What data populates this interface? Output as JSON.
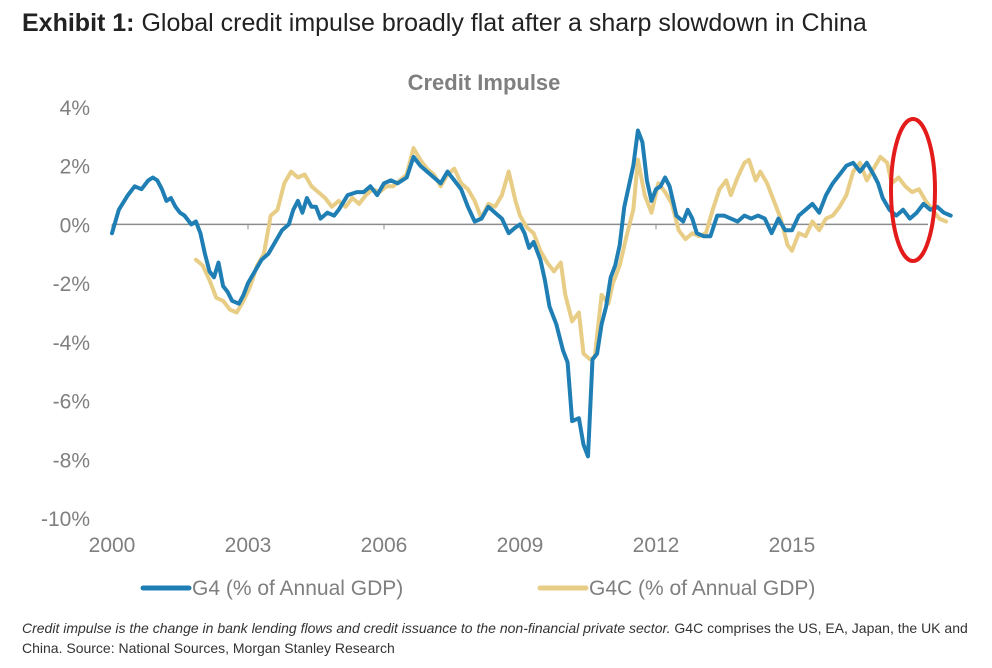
{
  "exhibit": {
    "label": "Exhibit 1:",
    "title": "Global credit impulse broadly flat after a sharp slowdown in China"
  },
  "footnote": {
    "italic": "Credit impulse is the change in bank lending flows and credit issuance to the non-financial private sector.",
    "text": "G4C comprises the US, EA, Japan, the UK and China. Source: National Sources, Morgan Stanley Research"
  },
  "colors": {
    "g4": "#1f7fb4",
    "g4c": "#e8cd86",
    "axis_text": "#7f7f7f",
    "zero_line": "#8c8c8c",
    "highlight_ring": "#e31b1b"
  },
  "chart_data": {
    "type": "line",
    "title": "Credit Impulse",
    "xlabel": "",
    "ylabel": "",
    "x_ticks": [
      "2000",
      "2003",
      "2006",
      "2009",
      "2012",
      "2015"
    ],
    "y_ticks": [
      "4%",
      "2%",
      "0%",
      "-2%",
      "-4%",
      "-6%",
      "-8%",
      "-10%"
    ],
    "xlim": [
      2000,
      2018
    ],
    "ylim": [
      -10,
      4
    ],
    "grid": false,
    "legend_position": "bottom",
    "series": [
      {
        "name": "G4 (% of Annual GDP)",
        "color": "#1f7fb4",
        "points": [
          [
            2000.0,
            -0.3
          ],
          [
            2000.15,
            0.5
          ],
          [
            2000.35,
            1.0
          ],
          [
            2000.5,
            1.3
          ],
          [
            2000.65,
            1.2
          ],
          [
            2000.8,
            1.5
          ],
          [
            2000.9,
            1.6
          ],
          [
            2001.0,
            1.5
          ],
          [
            2001.1,
            1.2
          ],
          [
            2001.2,
            0.8
          ],
          [
            2001.3,
            0.9
          ],
          [
            2001.4,
            0.6
          ],
          [
            2001.5,
            0.4
          ],
          [
            2001.6,
            0.3
          ],
          [
            2001.75,
            0.0
          ],
          [
            2001.85,
            0.1
          ],
          [
            2001.95,
            -0.3
          ],
          [
            2002.05,
            -1.0
          ],
          [
            2002.15,
            -1.6
          ],
          [
            2002.25,
            -1.8
          ],
          [
            2002.35,
            -1.3
          ],
          [
            2002.45,
            -2.1
          ],
          [
            2002.55,
            -2.3
          ],
          [
            2002.65,
            -2.6
          ],
          [
            2002.8,
            -2.7
          ],
          [
            2002.9,
            -2.4
          ],
          [
            2003.0,
            -2.0
          ],
          [
            2003.15,
            -1.6
          ],
          [
            2003.3,
            -1.2
          ],
          [
            2003.45,
            -1.0
          ],
          [
            2003.6,
            -0.6
          ],
          [
            2003.75,
            -0.2
          ],
          [
            2003.9,
            0.0
          ],
          [
            2004.0,
            0.5
          ],
          [
            2004.1,
            0.8
          ],
          [
            2004.2,
            0.4
          ],
          [
            2004.3,
            0.9
          ],
          [
            2004.4,
            0.6
          ],
          [
            2004.5,
            0.6
          ],
          [
            2004.6,
            0.2
          ],
          [
            2004.75,
            0.4
          ],
          [
            2004.9,
            0.3
          ],
          [
            2005.0,
            0.5
          ],
          [
            2005.2,
            1.0
          ],
          [
            2005.4,
            1.1
          ],
          [
            2005.55,
            1.1
          ],
          [
            2005.7,
            1.3
          ],
          [
            2005.85,
            1.0
          ],
          [
            2006.0,
            1.4
          ],
          [
            2006.15,
            1.5
          ],
          [
            2006.3,
            1.4
          ],
          [
            2006.5,
            1.6
          ],
          [
            2006.65,
            2.3
          ],
          [
            2006.8,
            2.0
          ],
          [
            2006.95,
            1.8
          ],
          [
            2007.1,
            1.6
          ],
          [
            2007.25,
            1.4
          ],
          [
            2007.4,
            1.8
          ],
          [
            2007.55,
            1.5
          ],
          [
            2007.7,
            1.2
          ],
          [
            2007.85,
            0.6
          ],
          [
            2008.0,
            0.1
          ],
          [
            2008.15,
            0.2
          ],
          [
            2008.3,
            0.6
          ],
          [
            2008.45,
            0.4
          ],
          [
            2008.6,
            0.2
          ],
          [
            2008.75,
            -0.3
          ],
          [
            2008.9,
            -0.1
          ],
          [
            2009.0,
            0.0
          ],
          [
            2009.1,
            -0.3
          ],
          [
            2009.2,
            -0.8
          ],
          [
            2009.3,
            -0.6
          ],
          [
            2009.45,
            -1.2
          ],
          [
            2009.55,
            -1.9
          ],
          [
            2009.65,
            -2.8
          ],
          [
            2009.8,
            -3.4
          ],
          [
            2009.95,
            -4.3
          ],
          [
            2010.05,
            -4.7
          ],
          [
            2010.15,
            -6.7
          ],
          [
            2010.3,
            -6.6
          ],
          [
            2010.4,
            -7.5
          ],
          [
            2010.5,
            -7.9
          ],
          [
            2010.6,
            -4.6
          ],
          [
            2010.7,
            -4.4
          ],
          [
            2010.8,
            -3.4
          ],
          [
            2010.9,
            -2.8
          ],
          [
            2011.0,
            -1.8
          ],
          [
            2011.1,
            -1.4
          ],
          [
            2011.2,
            -0.7
          ],
          [
            2011.3,
            0.6
          ],
          [
            2011.4,
            1.3
          ],
          [
            2011.5,
            2.0
          ],
          [
            2011.6,
            3.2
          ],
          [
            2011.7,
            2.8
          ],
          [
            2011.8,
            1.5
          ],
          [
            2011.9,
            0.8
          ],
          [
            2012.0,
            1.2
          ],
          [
            2012.1,
            1.3
          ],
          [
            2012.2,
            1.6
          ],
          [
            2012.3,
            1.3
          ],
          [
            2012.45,
            0.3
          ],
          [
            2012.6,
            0.1
          ],
          [
            2012.7,
            0.5
          ],
          [
            2012.8,
            0.2
          ],
          [
            2012.9,
            -0.3
          ],
          [
            2013.05,
            -0.4
          ],
          [
            2013.2,
            -0.4
          ],
          [
            2013.35,
            0.3
          ],
          [
            2013.5,
            0.3
          ],
          [
            2013.65,
            0.2
          ],
          [
            2013.8,
            0.1
          ],
          [
            2013.95,
            0.3
          ],
          [
            2014.1,
            0.2
          ],
          [
            2014.25,
            0.3
          ],
          [
            2014.4,
            0.2
          ],
          [
            2014.55,
            -0.3
          ],
          [
            2014.7,
            0.2
          ],
          [
            2014.85,
            -0.2
          ],
          [
            2015.0,
            -0.2
          ],
          [
            2015.15,
            0.3
          ],
          [
            2015.3,
            0.5
          ],
          [
            2015.45,
            0.7
          ],
          [
            2015.6,
            0.4
          ],
          [
            2015.75,
            1.0
          ],
          [
            2015.9,
            1.4
          ],
          [
            2016.0,
            1.6
          ],
          [
            2016.1,
            1.8
          ],
          [
            2016.2,
            2.0
          ],
          [
            2016.35,
            2.1
          ],
          [
            2016.5,
            1.8
          ],
          [
            2016.65,
            2.1
          ],
          [
            2016.8,
            1.7
          ],
          [
            2016.9,
            1.4
          ],
          [
            2017.0,
            0.9
          ],
          [
            2017.15,
            0.5
          ],
          [
            2017.3,
            0.3
          ],
          [
            2017.45,
            0.5
          ],
          [
            2017.6,
            0.2
          ],
          [
            2017.75,
            0.4
          ],
          [
            2017.9,
            0.7
          ],
          [
            2018.05,
            0.5
          ],
          [
            2018.2,
            0.6
          ],
          [
            2018.35,
            0.4
          ],
          [
            2018.5,
            0.3
          ]
        ]
      },
      {
        "name": "G4C (% of Annual GDP)",
        "color": "#e8cd86",
        "points": [
          [
            2001.85,
            -1.2
          ],
          [
            2002.0,
            -1.4
          ],
          [
            2002.15,
            -1.9
          ],
          [
            2002.3,
            -2.5
          ],
          [
            2002.45,
            -2.6
          ],
          [
            2002.6,
            -2.9
          ],
          [
            2002.75,
            -3.0
          ],
          [
            2002.9,
            -2.6
          ],
          [
            2003.05,
            -2.1
          ],
          [
            2003.2,
            -1.4
          ],
          [
            2003.35,
            -1.0
          ],
          [
            2003.5,
            0.3
          ],
          [
            2003.65,
            0.5
          ],
          [
            2003.8,
            1.4
          ],
          [
            2003.95,
            1.8
          ],
          [
            2004.1,
            1.6
          ],
          [
            2004.25,
            1.7
          ],
          [
            2004.4,
            1.3
          ],
          [
            2004.55,
            1.1
          ],
          [
            2004.7,
            0.9
          ],
          [
            2004.85,
            0.6
          ],
          [
            2005.0,
            0.8
          ],
          [
            2005.15,
            0.6
          ],
          [
            2005.3,
            0.9
          ],
          [
            2005.45,
            0.7
          ],
          [
            2005.6,
            1.0
          ],
          [
            2005.75,
            1.2
          ],
          [
            2005.9,
            1.1
          ],
          [
            2006.05,
            1.3
          ],
          [
            2006.2,
            1.3
          ],
          [
            2006.35,
            1.5
          ],
          [
            2006.5,
            1.7
          ],
          [
            2006.65,
            2.6
          ],
          [
            2006.8,
            2.2
          ],
          [
            2006.95,
            1.9
          ],
          [
            2007.1,
            1.7
          ],
          [
            2007.25,
            1.3
          ],
          [
            2007.4,
            1.7
          ],
          [
            2007.55,
            1.9
          ],
          [
            2007.7,
            1.4
          ],
          [
            2007.85,
            1.2
          ],
          [
            2008.0,
            0.8
          ],
          [
            2008.15,
            0.2
          ],
          [
            2008.3,
            0.7
          ],
          [
            2008.45,
            0.6
          ],
          [
            2008.6,
            1.0
          ],
          [
            2008.75,
            1.8
          ],
          [
            2008.9,
            0.8
          ],
          [
            2009.0,
            0.3
          ],
          [
            2009.15,
            -0.1
          ],
          [
            2009.3,
            -0.3
          ],
          [
            2009.45,
            -0.9
          ],
          [
            2009.6,
            -1.3
          ],
          [
            2009.75,
            -1.6
          ],
          [
            2009.9,
            -1.3
          ],
          [
            2010.0,
            -2.4
          ],
          [
            2010.15,
            -3.3
          ],
          [
            2010.3,
            -3.0
          ],
          [
            2010.4,
            -4.4
          ],
          [
            2010.55,
            -4.6
          ],
          [
            2010.65,
            -4.5
          ],
          [
            2010.8,
            -2.4
          ],
          [
            2010.95,
            -2.7
          ],
          [
            2011.05,
            -2.0
          ],
          [
            2011.2,
            -1.4
          ],
          [
            2011.35,
            -0.4
          ],
          [
            2011.5,
            0.5
          ],
          [
            2011.6,
            2.2
          ],
          [
            2011.75,
            1.0
          ],
          [
            2011.9,
            0.4
          ],
          [
            2012.05,
            1.4
          ],
          [
            2012.2,
            1.1
          ],
          [
            2012.35,
            0.7
          ],
          [
            2012.5,
            -0.2
          ],
          [
            2012.65,
            -0.5
          ],
          [
            2012.8,
            -0.3
          ],
          [
            2012.95,
            -0.4
          ],
          [
            2013.1,
            -0.3
          ],
          [
            2013.25,
            0.5
          ],
          [
            2013.4,
            1.2
          ],
          [
            2013.55,
            1.5
          ],
          [
            2013.65,
            1.0
          ],
          [
            2013.8,
            1.6
          ],
          [
            2013.95,
            2.1
          ],
          [
            2014.05,
            2.2
          ],
          [
            2014.2,
            1.5
          ],
          [
            2014.3,
            1.8
          ],
          [
            2014.45,
            1.4
          ],
          [
            2014.6,
            0.8
          ],
          [
            2014.75,
            0.2
          ],
          [
            2014.9,
            -0.7
          ],
          [
            2015.0,
            -0.9
          ],
          [
            2015.15,
            -0.3
          ],
          [
            2015.3,
            -0.4
          ],
          [
            2015.45,
            0.1
          ],
          [
            2015.6,
            -0.2
          ],
          [
            2015.75,
            0.2
          ],
          [
            2015.9,
            0.3
          ],
          [
            2016.05,
            0.6
          ],
          [
            2016.2,
            1.0
          ],
          [
            2016.35,
            1.8
          ],
          [
            2016.5,
            2.1
          ],
          [
            2016.65,
            1.5
          ],
          [
            2016.8,
            1.9
          ],
          [
            2016.95,
            2.3
          ],
          [
            2017.1,
            2.1
          ],
          [
            2017.2,
            1.4
          ],
          [
            2017.35,
            1.6
          ],
          [
            2017.5,
            1.3
          ],
          [
            2017.65,
            1.1
          ],
          [
            2017.8,
            1.2
          ],
          [
            2017.95,
            0.8
          ],
          [
            2018.1,
            0.5
          ],
          [
            2018.25,
            0.2
          ],
          [
            2018.4,
            0.1
          ]
        ]
      }
    ]
  }
}
